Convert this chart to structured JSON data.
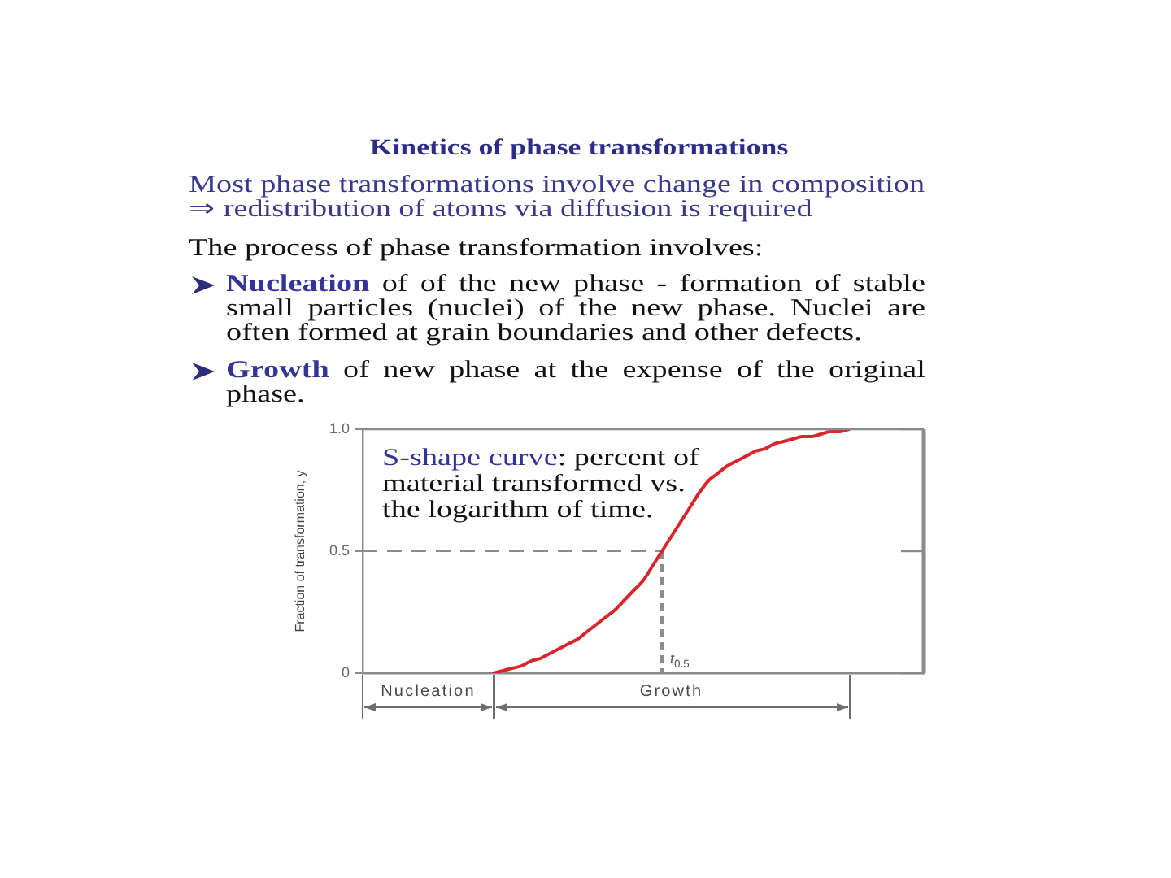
{
  "chart_data": {
    "type": "line",
    "title": "Kinetics of phase transformations",
    "subtitle": "Most phase transformations involve change in composition\n⇒ redistribution of atoms via diffusion is required",
    "ylabel": "Fraction of transformation, y",
    "categories": [
      null,
      null,
      null,
      null,
      null,
      null,
      null,
      null,
      null,
      null,
      null,
      null,
      null,
      null,
      null,
      null,
      null,
      null,
      null,
      null,
      null,
      null,
      null,
      null,
      null,
      null,
      null,
      null,
      null,
      null,
      null,
      null,
      null,
      null,
      null,
      null,
      null,
      null,
      null,
      null,
      null,
      null,
      null,
      null,
      null,
      null,
      null,
      null,
      null,
      null,
      null,
      null,
      null,
      null,
      null,
      null,
      null,
      null,
      null,
      null,
      null
    ],
    "values": [
      null,
      null,
      null,
      null,
      null,
      null,
      null,
      null,
      null,
      null,
      null,
      null,
      null,
      null,
      0,
      0.01,
      0.02,
      0.03,
      0.05,
      0.06,
      0.08,
      0.1,
      0.12,
      0.14,
      0.17,
      0.2,
      0.23,
      0.26,
      0.3,
      0.34,
      0.38,
      0.44,
      0.5,
      0.56,
      0.62,
      0.68,
      0.74,
      0.79,
      0.82,
      0.85,
      0.87,
      0.89,
      0.91,
      0.92,
      0.94,
      0.95,
      0.96,
      0.97,
      0.97,
      0.98,
      0.99,
      0.99,
      1,
      null,
      null,
      null,
      null,
      null,
      null,
      null,
      null
    ],
    "color": "#d9262c",
    "ylim": [
      0,
      1
    ],
    "yticks": [
      0,
      0.5,
      {
        "value": 1,
        "label": "1.0"
      }
    ],
    "ref_lines": [
      {
        "axis": "y",
        "value": 0.5,
        "label": "t$_{0.5}$",
        "color": "#8c8c8c",
        "line_style": "dashed"
      }
    ],
    "annotations": [
      "The process of phase transformation involves:",
      "Nucleation of of the new phase - formation of stable small particles (nuclei) of the new phase. Nuclei are often formed at grain boundaries and other defects.",
      "Growth of new phase at the expense of the original phase.",
      "S-shape curve: percent of material transformed vs. the logarithm of time.",
      "Nucleation",
      "Growth"
    ]
  }
}
